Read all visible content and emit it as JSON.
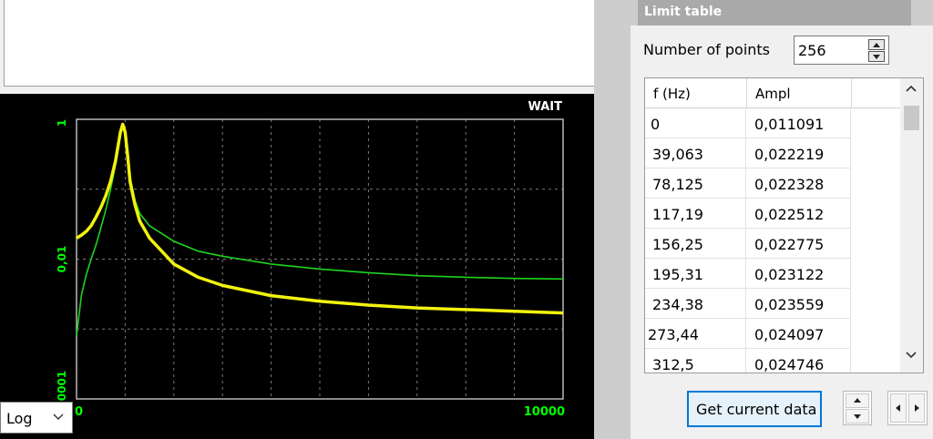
{
  "chart_status": "WAIT",
  "scale_mode": "Log",
  "limit_table": {
    "title": "Limit table",
    "num_points_label": "Number of points",
    "num_points_value": "256",
    "columns": [
      "f (Hz)",
      "Ampl"
    ],
    "rows": [
      [
        "0",
        "0,011091"
      ],
      [
        "39,063",
        "0,022219"
      ],
      [
        "78,125",
        "0,022328"
      ],
      [
        "117,19",
        "0,022512"
      ],
      [
        "156,25",
        "0,022775"
      ],
      [
        "195,31",
        "0,023122"
      ],
      [
        "234,38",
        "0,023559"
      ],
      [
        "273,44",
        "0,024097"
      ],
      [
        "312,5",
        "0,024746"
      ]
    ],
    "get_data_label": "Get current data"
  },
  "chart_data": {
    "type": "line",
    "xlim": [
      0,
      10000
    ],
    "x_tick_labels": [
      "0",
      "10000"
    ],
    "y_scale": "log",
    "ylim": [
      0.0001,
      1
    ],
    "y_tick_labels": [
      "1",
      "0,01",
      "0,0001"
    ],
    "grid": true,
    "colors": {
      "background": "#000000",
      "axis": "#b8b8b8",
      "grid": "#7a7a7a",
      "green_series": "#1ed41e",
      "yellow_series": "#f2f20f",
      "tick_labels": "#00ff00"
    },
    "series": [
      {
        "color": "#1ed41e",
        "x": [
          0,
          100,
          200,
          300,
          400,
          500,
          600,
          700,
          800,
          900,
          950,
          1000,
          1050,
          1100,
          1200,
          1300,
          1500,
          2000,
          2500,
          3000,
          4000,
          5000,
          6000,
          7000,
          8000,
          9000,
          10000
        ],
        "y": [
          0.0008,
          0.003,
          0.006,
          0.01,
          0.016,
          0.028,
          0.05,
          0.1,
          0.22,
          0.6,
          0.8,
          0.6,
          0.3,
          0.15,
          0.07,
          0.045,
          0.03,
          0.018,
          0.013,
          0.011,
          0.0085,
          0.0072,
          0.0064,
          0.0058,
          0.0055,
          0.0053,
          0.0052
        ]
      },
      {
        "color": "#f2f20f",
        "x": [
          0,
          100,
          200,
          300,
          400,
          500,
          600,
          700,
          800,
          900,
          950,
          1000,
          1050,
          1100,
          1200,
          1300,
          1500,
          2000,
          2500,
          3000,
          4000,
          5000,
          6000,
          7000,
          8000,
          9000,
          10000
        ],
        "y": [
          0.02,
          0.022,
          0.025,
          0.03,
          0.04,
          0.055,
          0.08,
          0.13,
          0.25,
          0.65,
          0.85,
          0.65,
          0.3,
          0.13,
          0.06,
          0.035,
          0.02,
          0.0085,
          0.0055,
          0.0042,
          0.003,
          0.0025,
          0.0022,
          0.002,
          0.0019,
          0.0018,
          0.0017
        ]
      }
    ]
  }
}
